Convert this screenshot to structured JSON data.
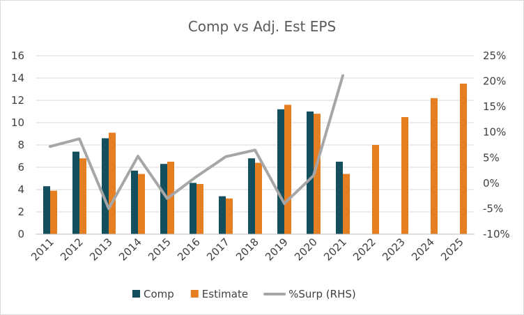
{
  "chart_data": {
    "type": "bar",
    "title": "Comp vs Adj. Est EPS",
    "categories": [
      "2011",
      "2012",
      "2013",
      "2014",
      "2015",
      "2016",
      "2017",
      "2018",
      "2019",
      "2020",
      "2021",
      "2022",
      "2023",
      "2024",
      "2025"
    ],
    "series": [
      {
        "name": "Comp",
        "kind": "bar",
        "axis": "left",
        "color": "#134f5c",
        "values": [
          4.3,
          7.4,
          8.6,
          5.7,
          6.3,
          4.6,
          3.4,
          6.8,
          11.2,
          11.0,
          6.5,
          null,
          null,
          null,
          null
        ]
      },
      {
        "name": "Estimate",
        "kind": "bar",
        "axis": "left",
        "color": "#e67e22",
        "values": [
          3.9,
          6.8,
          9.1,
          5.4,
          6.5,
          4.5,
          3.2,
          6.4,
          11.6,
          10.8,
          5.4,
          8.0,
          10.5,
          12.2,
          13.5
        ]
      },
      {
        "name": "%Surp (RHS)",
        "kind": "line",
        "axis": "right",
        "color": "#a6a6a6",
        "values": [
          7.2,
          8.7,
          -5.0,
          5.3,
          -3.0,
          1.3,
          5.2,
          6.5,
          -4.0,
          1.5,
          21.1,
          null,
          null,
          null,
          null
        ]
      }
    ],
    "y_left": {
      "min": 0,
      "max": 16,
      "step": 2,
      "ticks": [
        "0",
        "2",
        "4",
        "6",
        "8",
        "10",
        "12",
        "14",
        "16"
      ]
    },
    "y_right": {
      "min": -10,
      "max": 25,
      "step": 5,
      "ticks": [
        "-10%",
        "-5%",
        "0%",
        "5%",
        "10%",
        "15%",
        "20%",
        "25%"
      ]
    },
    "grid": true,
    "legend": "bottom"
  }
}
